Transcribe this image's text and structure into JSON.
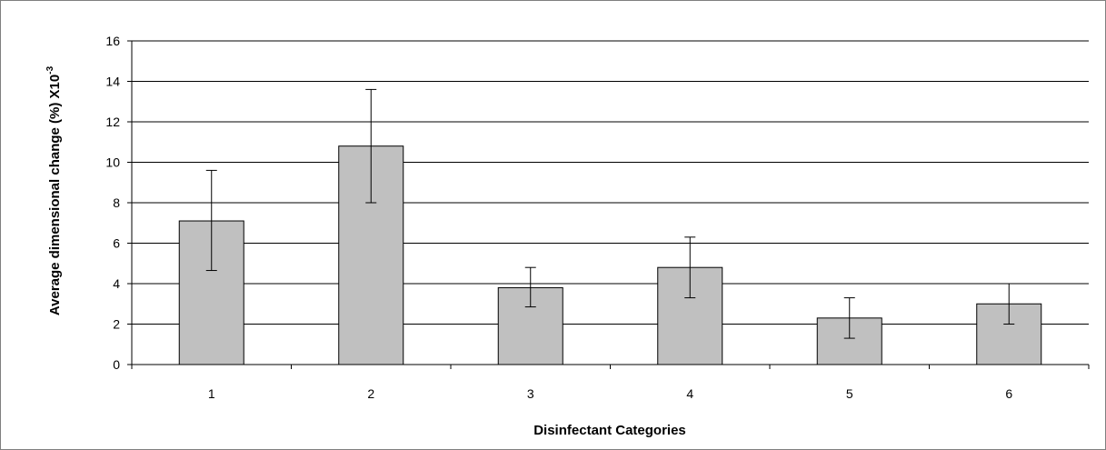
{
  "chart_data": {
    "type": "bar",
    "title": "",
    "xlabel": "Disinfectant Categories",
    "ylabel_main": "Average dimensional change (%) X10",
    "ylabel_sup": "-3",
    "categories": [
      "1",
      "2",
      "3",
      "4",
      "5",
      "6"
    ],
    "values": [
      7.1,
      10.8,
      3.8,
      4.8,
      2.3,
      3.0
    ],
    "error_low": [
      4.65,
      8.0,
      2.85,
      3.3,
      1.3,
      2.0
    ],
    "error_high": [
      9.6,
      13.6,
      4.8,
      6.3,
      3.3,
      4.0
    ],
    "ylim": [
      0,
      16
    ],
    "yticks": [
      0,
      2,
      4,
      6,
      8,
      10,
      12,
      14,
      16
    ],
    "grid": true,
    "legend": "none",
    "bar_color": "#c0c0c0",
    "bar_stroke": "#000000"
  }
}
